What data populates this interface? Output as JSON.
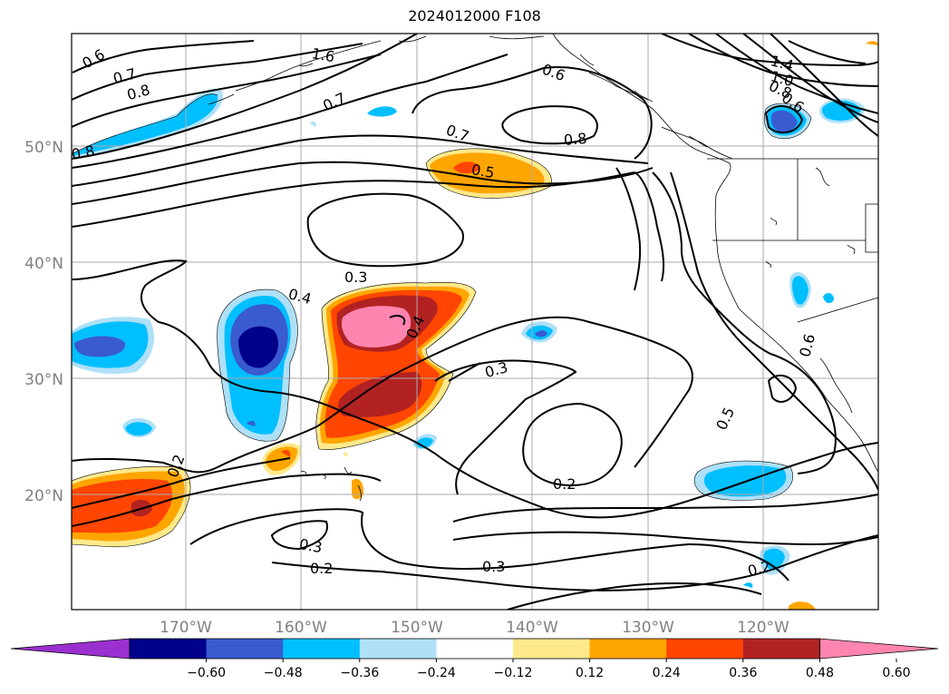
{
  "title": "2024012000 F108",
  "lat_labels": [
    "50°N",
    "40°N",
    "30°N",
    "20°N"
  ],
  "lon_labels": [
    "170°W",
    "160°W",
    "150°W",
    "140°W",
    "130°W",
    "120°W"
  ],
  "contour_labels": [
    "0.6",
    "1.6",
    "0.7",
    "0.8",
    "0.7",
    "0.6",
    "1.4",
    "1.0",
    "0.8",
    "0.6",
    "0.8",
    "0.7",
    "0.8",
    "0.5",
    "0.3",
    "0.4",
    "0.4",
    "0.3",
    "0.2",
    "0.5",
    "0.2",
    "0.3",
    "0.2",
    "0.3",
    "0.2",
    "0.6"
  ],
  "colorbar": {
    "ticks": [
      "−0.60",
      "−0.48",
      "−0.36",
      "−0.24",
      "−0.12",
      "0.12",
      "0.24",
      "0.36",
      "0.48",
      "0.60"
    ],
    "colors": [
      "#9b30d0",
      "#00008b",
      "#3a5bd0",
      "#00bfff",
      "#aee0f8",
      "#ffffff",
      "#ffe98a",
      "#ffa500",
      "#ff4500",
      "#b22222",
      "#ff85b0"
    ]
  }
}
